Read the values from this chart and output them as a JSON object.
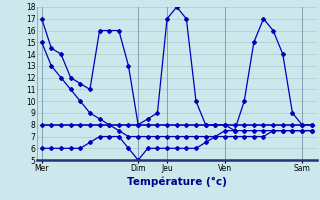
{
  "background_color": "#cce8ec",
  "grid_color": "#aacccc",
  "line_color": "#0000bb",
  "xlabel": "Température (°c)",
  "ylim": [
    5,
    18
  ],
  "yticks": [
    5,
    6,
    7,
    8,
    9,
    10,
    11,
    12,
    13,
    14,
    15,
    16,
    17,
    18
  ],
  "x_day_labels": [
    "Mer",
    "Dim",
    "Jeu",
    "Ven",
    "Sam"
  ],
  "x_day_positions": [
    0,
    10,
    13,
    19,
    27
  ],
  "xlim": [
    -0.5,
    28.5
  ],
  "num_points": 29,
  "line1_y": [
    17,
    14.5,
    14,
    12,
    11.5,
    11,
    16,
    16,
    16,
    13,
    8,
    8.5,
    9,
    17,
    18,
    17,
    10,
    8,
    8,
    8,
    7.5,
    10,
    15,
    17,
    16,
    14,
    9,
    8,
    8
  ],
  "line2_y": [
    8,
    8,
    8,
    8,
    8,
    8,
    8,
    8,
    8,
    8,
    8,
    8,
    8,
    8,
    8,
    8,
    8,
    8,
    8,
    8,
    8,
    8,
    8,
    8,
    8,
    8,
    8,
    8,
    8
  ],
  "line3_y": [
    15,
    13,
    12,
    11,
    10,
    9,
    8.5,
    8,
    7.5,
    7,
    7,
    7,
    7,
    7,
    7,
    7,
    7,
    7,
    7,
    7.5,
    7.5,
    7.5,
    7.5,
    7.5,
    7.5,
    7.5,
    7.5,
    7.5,
    7.5
  ],
  "line4_y": [
    6,
    6,
    6,
    6,
    6,
    6.5,
    7,
    7,
    7,
    6,
    5,
    6,
    6,
    6,
    6,
    6,
    6,
    6.5,
    7,
    7,
    7,
    7,
    7,
    7,
    7.5,
    7.5,
    7.5,
    7.5,
    7.5
  ],
  "vline_positions": [
    0,
    10,
    13,
    19,
    27
  ],
  "vline_color": "#7799aa",
  "spine_bottom_color": "#223377",
  "tick_label_fontsize": 5.5,
  "xlabel_fontsize": 7.5,
  "xlabel_color": "#000088",
  "marker_size": 2.0,
  "linewidth": 0.9
}
